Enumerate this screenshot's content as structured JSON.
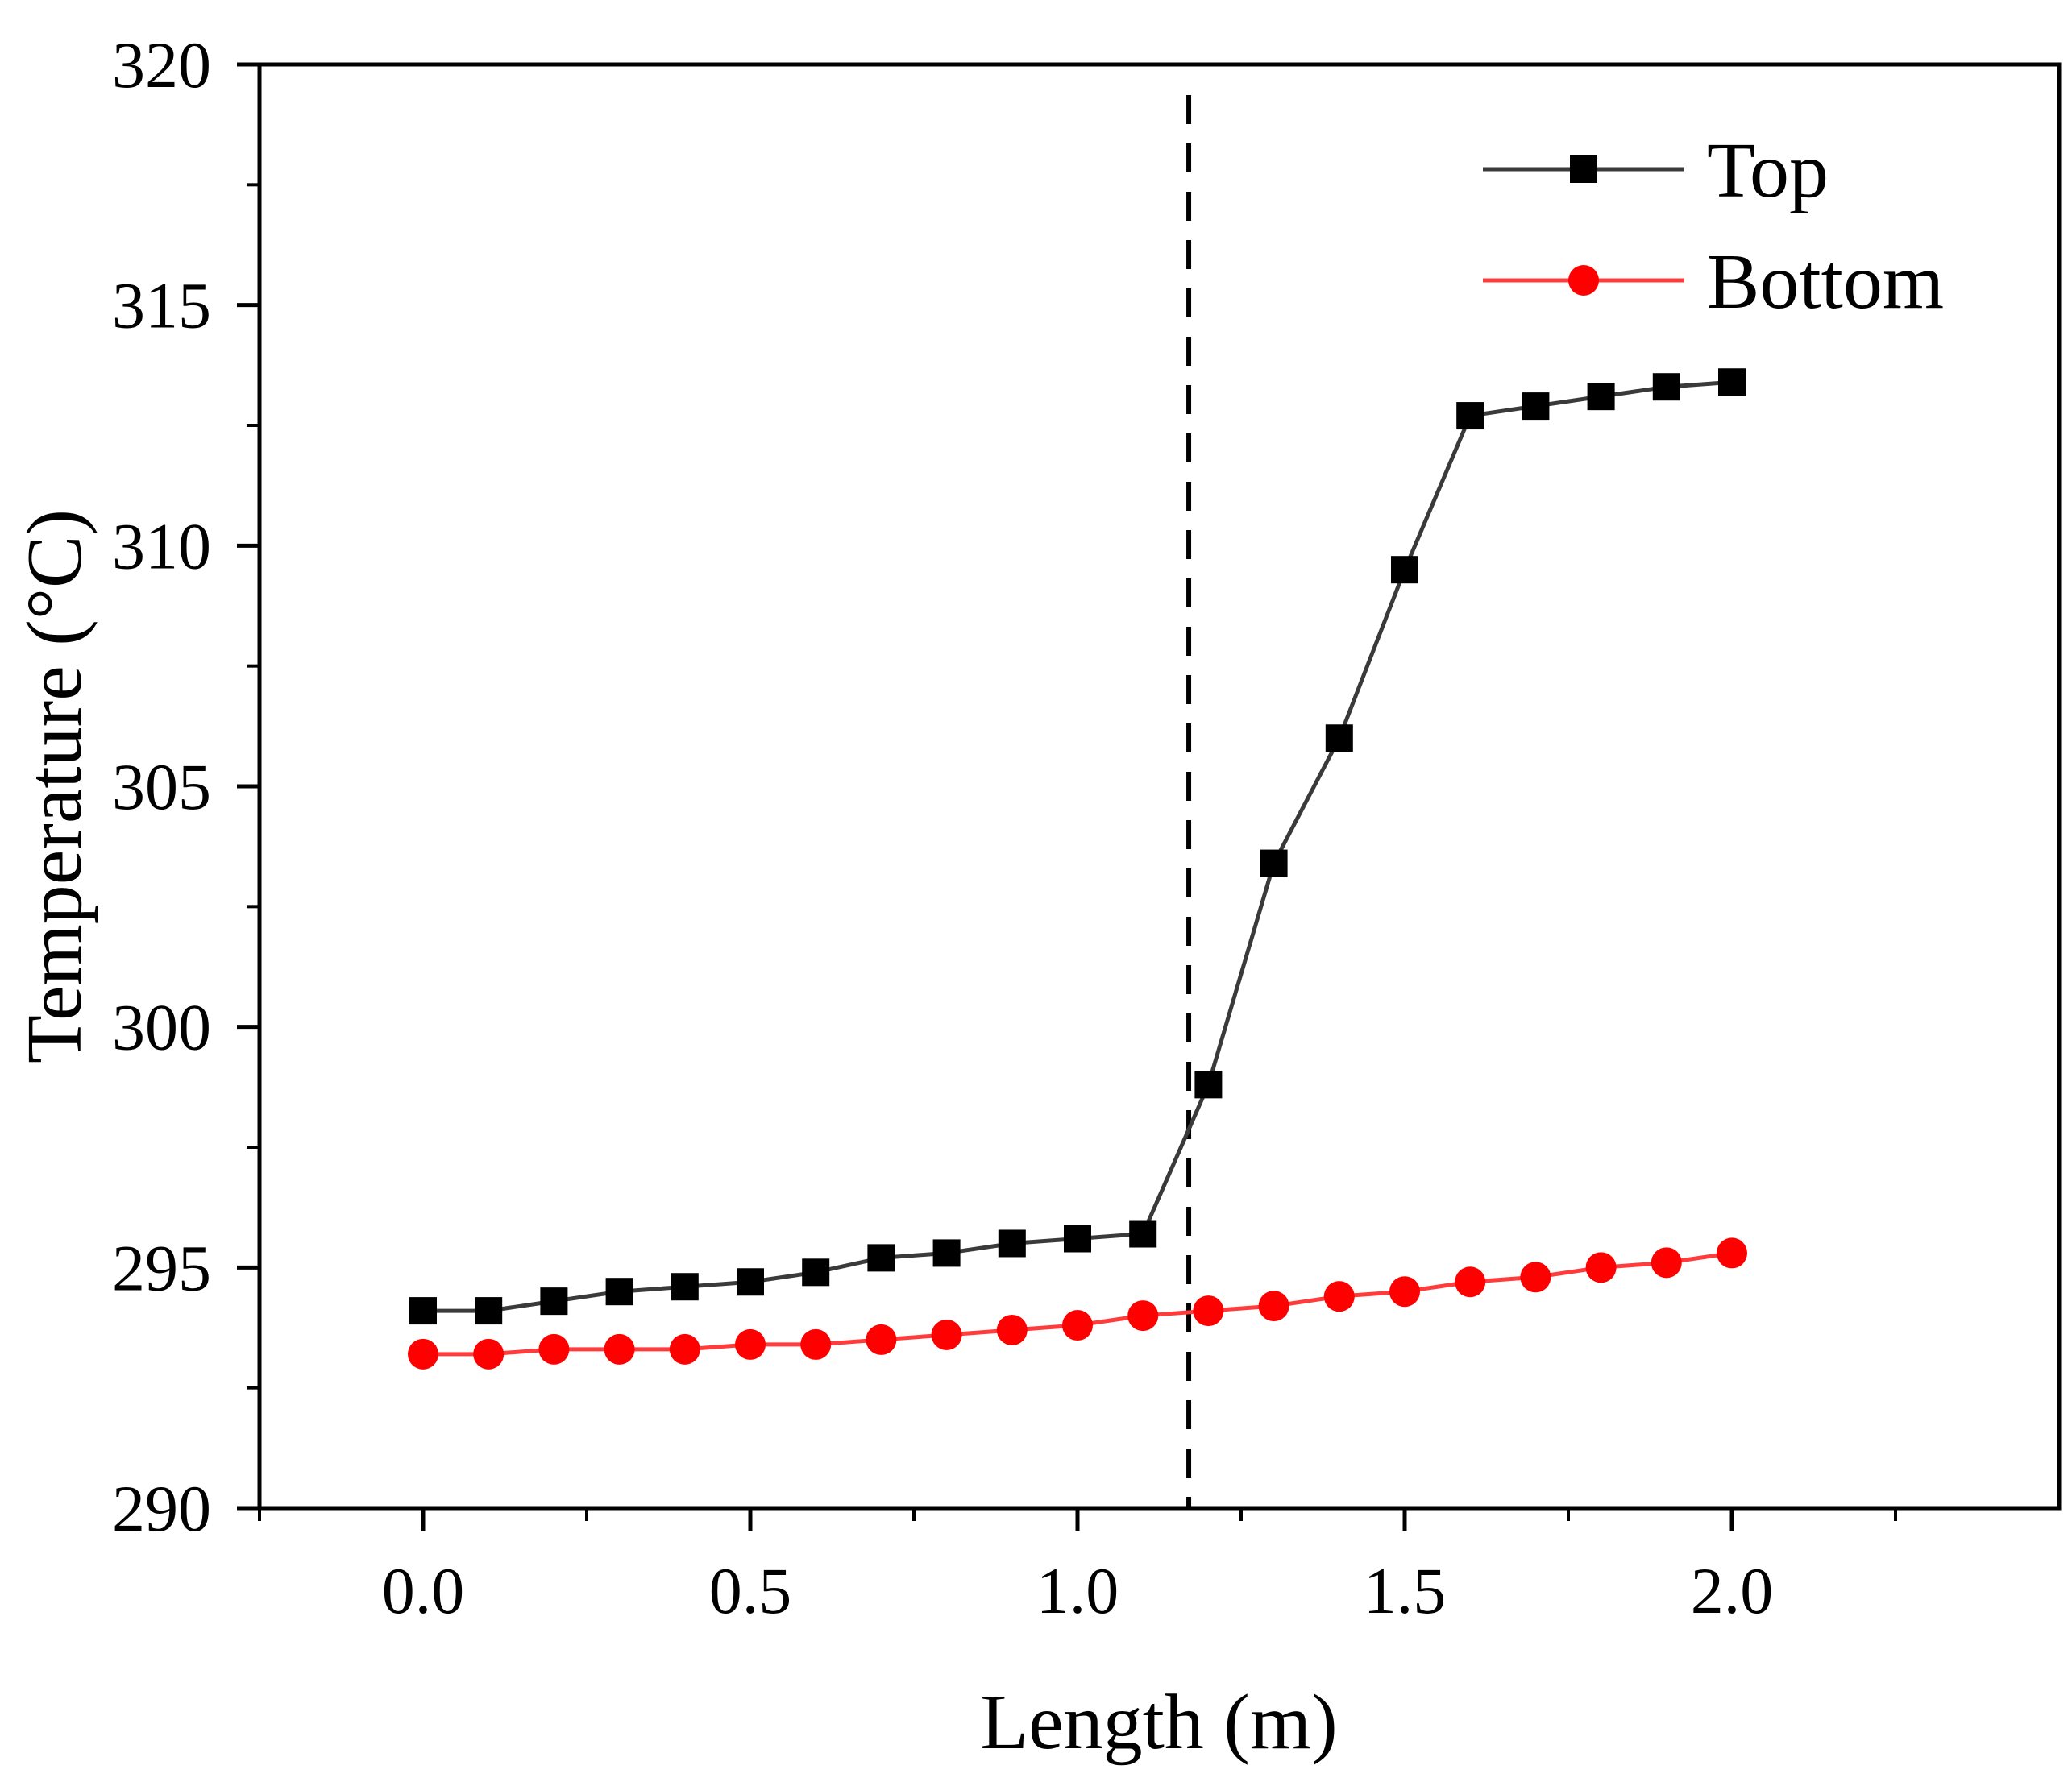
{
  "chart_data": {
    "type": "line",
    "xlabel": "Length (m)",
    "ylabel": "Temperature (°C)",
    "xlim": [
      -0.25,
      2.5
    ],
    "ylim": [
      290,
      320
    ],
    "x_ticks": [
      "0.0",
      "0.5",
      "1.0",
      "1.5",
      "2.0"
    ],
    "y_ticks": [
      "290",
      "295",
      "300",
      "305",
      "310",
      "315",
      "320"
    ],
    "grid": false,
    "legend_position": "top-right",
    "reference_line_x": 1.17,
    "series": [
      {
        "name": "Top",
        "marker": "square",
        "color": "#000000",
        "line_color": "#3a3a3a",
        "x": [
          0.0,
          0.1,
          0.2,
          0.3,
          0.4,
          0.5,
          0.6,
          0.7,
          0.8,
          0.9,
          1.0,
          1.1,
          1.2,
          1.3,
          1.4,
          1.5,
          1.6,
          1.7,
          1.8,
          1.9,
          2.0
        ],
        "values": [
          294.1,
          294.1,
          294.3,
          294.5,
          294.6,
          294.7,
          294.9,
          295.2,
          295.3,
          295.5,
          295.6,
          295.7,
          298.8,
          303.4,
          306.0,
          309.5,
          312.7,
          312.9,
          313.1,
          313.3,
          313.4
        ]
      },
      {
        "name": "Bottom",
        "marker": "circle",
        "color": "#ff0000",
        "line_color": "#ff3b3b",
        "x": [
          0.0,
          0.1,
          0.2,
          0.3,
          0.4,
          0.5,
          0.6,
          0.7,
          0.8,
          0.9,
          1.0,
          1.1,
          1.2,
          1.3,
          1.4,
          1.5,
          1.6,
          1.7,
          1.8,
          1.9,
          2.0
        ],
        "values": [
          293.2,
          293.2,
          293.3,
          293.3,
          293.3,
          293.4,
          293.4,
          293.5,
          293.6,
          293.7,
          293.8,
          294.0,
          294.1,
          294.2,
          294.4,
          294.5,
          294.7,
          294.8,
          295.0,
          295.1,
          295.3
        ]
      }
    ]
  }
}
